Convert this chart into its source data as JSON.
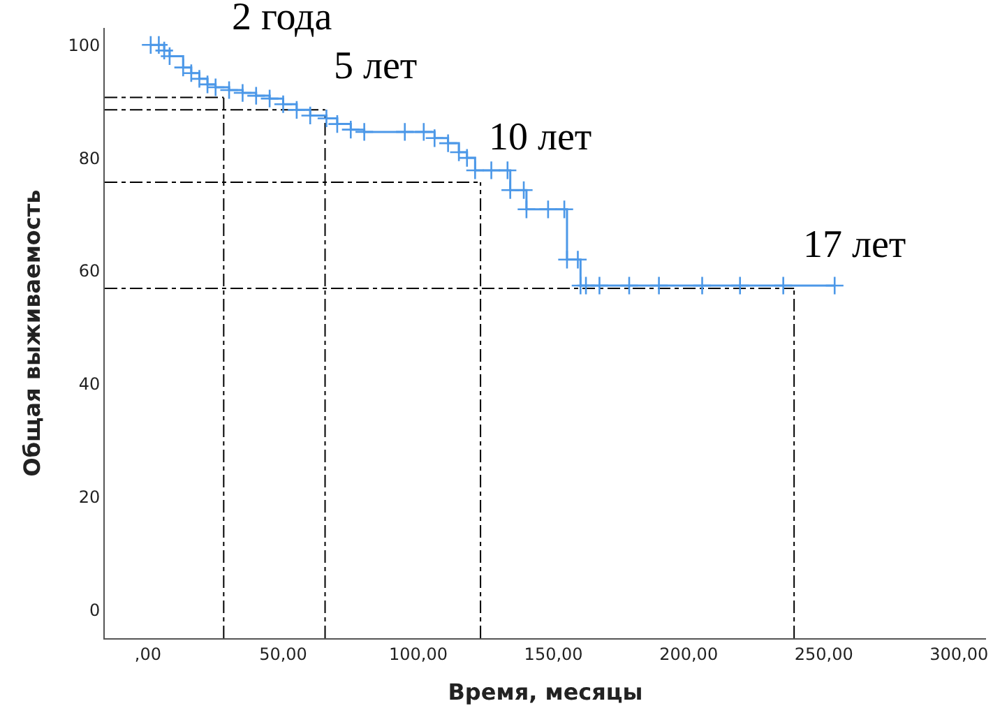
{
  "chart_data": {
    "type": "step",
    "xlabel": "Время, месяцы",
    "ylabel": "Общая выживаемость",
    "xlim": [
      -16,
      310
    ],
    "ylim": [
      -5,
      103
    ],
    "xticks": [
      {
        "value": 0,
        "label": ",00"
      },
      {
        "value": 50,
        "label": "50,00"
      },
      {
        "value": 100,
        "label": "100,00"
      },
      {
        "value": 150,
        "label": "150,00"
      },
      {
        "value": 200,
        "label": "200,00"
      },
      {
        "value": 250,
        "label": "250,00"
      },
      {
        "value": 300,
        "label": "300,00"
      }
    ],
    "yticks": [
      0,
      20,
      40,
      60,
      80,
      100
    ],
    "grid": false,
    "marker": "cross",
    "line_style": "solid",
    "series": [
      {
        "color": "#4c98e8",
        "x": [
          1,
          4,
          6,
          8,
          13,
          16,
          19,
          22,
          25,
          30,
          35,
          40,
          45,
          50,
          55,
          60,
          66,
          70,
          75,
          80,
          95,
          102,
          106,
          111,
          115,
          118,
          121,
          127,
          133,
          134,
          139,
          140,
          148,
          154,
          155,
          159,
          160,
          162,
          167,
          178,
          189,
          205,
          219,
          235,
          254
        ],
        "values": [
          100,
          100,
          99,
          98,
          96,
          95,
          94,
          93,
          92.5,
          92,
          91.5,
          91,
          90.5,
          89.5,
          88.5,
          87.5,
          87,
          86,
          85,
          84.6,
          84.6,
          84.6,
          83.5,
          82.6,
          81,
          80,
          77.8,
          77.8,
          77.8,
          74.3,
          74.3,
          70.9,
          70.9,
          70.9,
          62,
          62,
          57.4,
          57.4,
          57.4,
          57.4,
          57.4,
          57.4,
          57.4,
          57.4,
          57.4
        ]
      }
    ],
    "ref_lines": [
      {
        "axis": "y",
        "value": 90.7,
        "label": null,
        "color": "#000000",
        "line_style": "dashdot"
      },
      {
        "axis": "x",
        "value": 28,
        "label": null,
        "color": "#000000",
        "line_style": "dashdot"
      },
      {
        "axis": "y",
        "value": 88.5,
        "label": null,
        "color": "#000000",
        "line_style": "dashdot"
      },
      {
        "axis": "x",
        "value": 65.5,
        "label": null,
        "color": "#000000",
        "line_style": "dashdot"
      },
      {
        "axis": "y",
        "value": 75.7,
        "label": null,
        "color": "#000000",
        "line_style": "dashdot"
      },
      {
        "axis": "x",
        "value": 123,
        "label": null,
        "color": "#000000",
        "line_style": "dashdot"
      },
      {
        "axis": "y",
        "value": 56.9,
        "label": null,
        "color": "#000000",
        "line_style": "dashdot"
      },
      {
        "axis": "x",
        "value": 239,
        "label": null,
        "color": "#000000",
        "line_style": "dashdot"
      }
    ],
    "annotations": [
      "2 года",
      "5 лет",
      "10 лет",
      "17 лет"
    ]
  }
}
